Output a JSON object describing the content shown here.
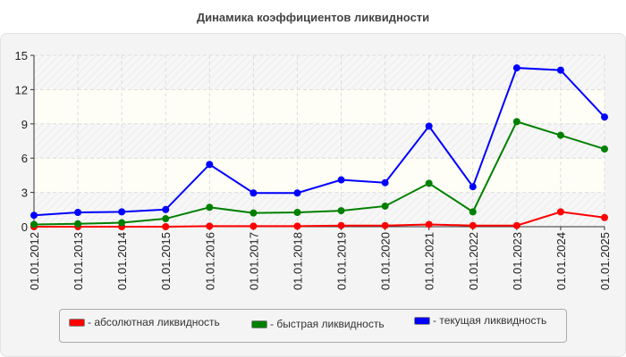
{
  "title": "Динамика коэффициентов ликвидности",
  "legend": [
    {
      "label": "- абсолютная ликвидность",
      "color": "#ff0000"
    },
    {
      "label": "- быстрая ликвидность",
      "color": "#008000"
    },
    {
      "label": "- текущая ликвидность",
      "color": "#0000ff"
    }
  ],
  "chart_data": {
    "type": "line",
    "title": "Динамика коэффициентов ликвидности",
    "xlabel": "",
    "ylabel": "",
    "ylim": [
      0,
      15
    ],
    "yticks": [
      0,
      3,
      6,
      9,
      12,
      15
    ],
    "grid": true,
    "legend_position": "bottom",
    "categories": [
      "01.01.2012",
      "01.01.2013",
      "01.01.2014",
      "01.01.2015",
      "01.01.2016",
      "01.01.2017",
      "01.01.2018",
      "01.01.2019",
      "01.01.2020",
      "01.01.2021",
      "01.01.2022",
      "01.01.2023",
      "01.01.2024",
      "01.01.2025"
    ],
    "series": [
      {
        "name": "абсолютная ликвидность",
        "color": "#ff0000",
        "values": [
          0.0,
          0.0,
          0.0,
          0.0,
          0.05,
          0.05,
          0.05,
          0.1,
          0.1,
          0.2,
          0.1,
          0.1,
          1.3,
          0.8
        ]
      },
      {
        "name": "быстрая ликвидность",
        "color": "#008000",
        "values": [
          0.2,
          0.25,
          0.35,
          0.7,
          1.7,
          1.2,
          1.25,
          1.4,
          1.8,
          3.8,
          1.3,
          9.2,
          8.0,
          6.8
        ]
      },
      {
        "name": "текущая ликвидность",
        "color": "#0000ff",
        "values": [
          1.0,
          1.25,
          1.3,
          1.5,
          5.45,
          2.95,
          2.95,
          4.1,
          3.85,
          8.8,
          3.5,
          13.9,
          13.7,
          9.6
        ]
      }
    ]
  }
}
